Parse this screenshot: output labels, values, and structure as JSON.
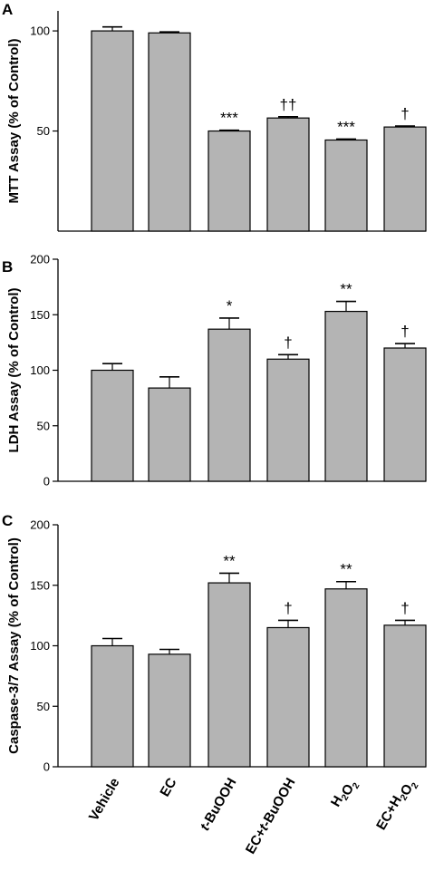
{
  "chart_data": [
    {
      "type": "bar",
      "panel_label": "A",
      "ylabel": "MTT Assay (% of Control)",
      "ylim": [
        0,
        110
      ],
      "yticks": [
        50,
        100
      ],
      "categories": [
        "Vehicle",
        "EC",
        "t-BuOOH",
        "EC+t-BuOOH",
        "H2O2",
        "EC+H2O2"
      ],
      "values": [
        100,
        99,
        50,
        56.5,
        45.5,
        52
      ],
      "errors": [
        2,
        0.5,
        0.4,
        0.6,
        0.5,
        0.5
      ],
      "significance": [
        "",
        "",
        "***",
        "††",
        "***",
        "†"
      ],
      "bar_color": "#b4b4b4",
      "grid": false
    },
    {
      "type": "bar",
      "panel_label": "B",
      "ylabel": "LDH Assay (% of Control)",
      "ylim": [
        0,
        200
      ],
      "yticks": [
        0,
        50,
        100,
        150,
        200
      ],
      "categories": [
        "Vehicle",
        "EC",
        "t-BuOOH",
        "EC+t-BuOOH",
        "H2O2",
        "EC+H2O2"
      ],
      "values": [
        100,
        84,
        137,
        110,
        153,
        120
      ],
      "errors": [
        6,
        10,
        10,
        4,
        9,
        4
      ],
      "significance": [
        "",
        "",
        "*",
        "†",
        "**",
        "†"
      ],
      "bar_color": "#b4b4b4",
      "grid": false
    },
    {
      "type": "bar",
      "panel_label": "C",
      "ylabel": "Caspase-3/7 Assay (% of Control)",
      "ylim": [
        0,
        200
      ],
      "yticks": [
        0,
        50,
        100,
        150,
        200
      ],
      "categories": [
        "Vehicle",
        "EC",
        "t-BuOOH",
        "EC+t-BuOOH",
        "H2O2",
        "EC+H2O2"
      ],
      "values": [
        100,
        93,
        152,
        115,
        147,
        117
      ],
      "errors": [
        6,
        4,
        8,
        6,
        6,
        4
      ],
      "significance": [
        "",
        "",
        "**",
        "†",
        "**",
        "†"
      ],
      "bar_color": "#b4b4b4",
      "grid": false
    }
  ],
  "x_axis_labels": [
    "Vehicle",
    "EC",
    "t-BuOOH",
    "EC+t-BuOOH",
    "H2O2",
    "EC+H2O2"
  ]
}
